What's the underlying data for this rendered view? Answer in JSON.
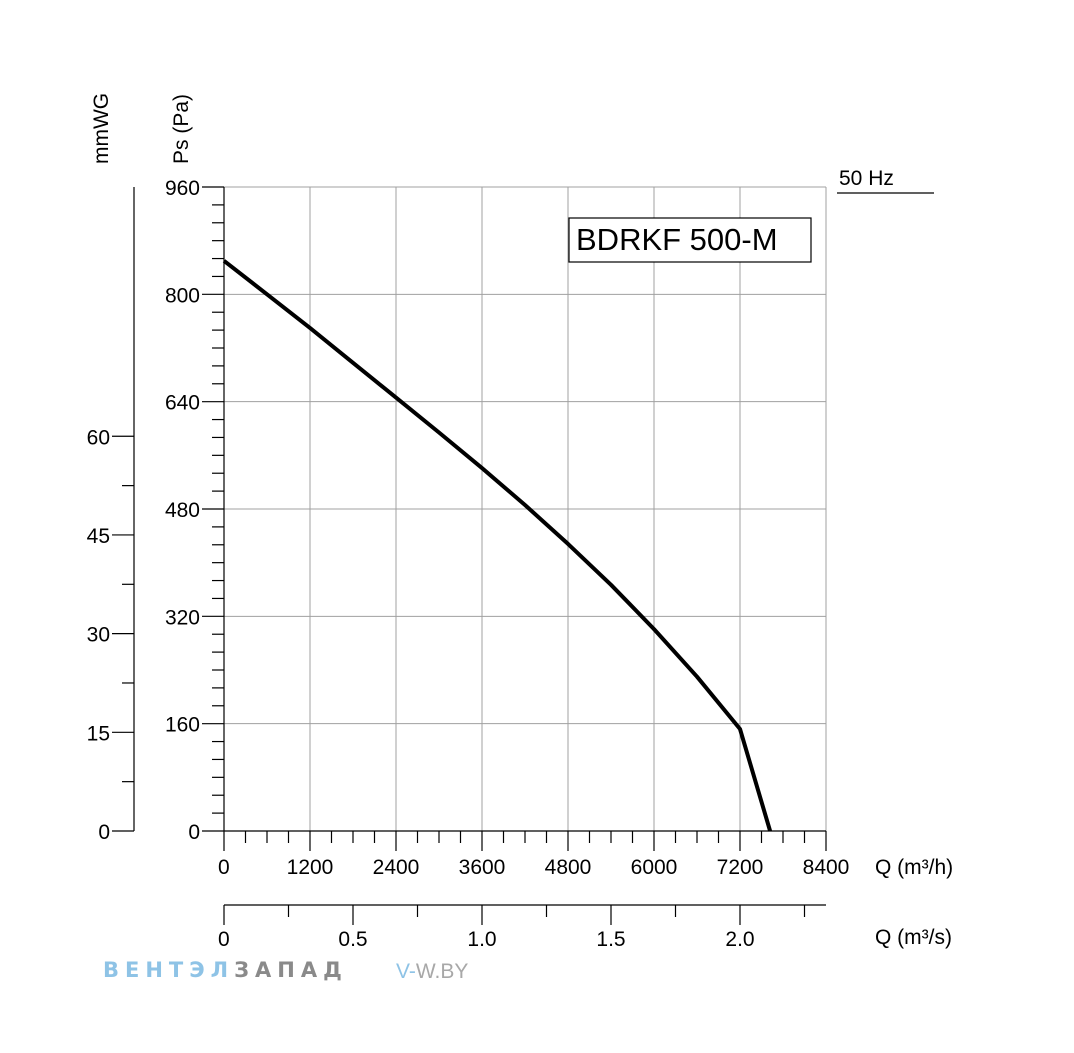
{
  "chart_data": {
    "type": "line",
    "title": "BDRKF 500-M",
    "frequency_label": "50 Hz",
    "xlabel": "Q (m³/h)",
    "xlabel_secondary": "Q (m³/s)",
    "ylabel": "Ps (Pa)",
    "ylabel_secondary": "mmWG",
    "xlim": [
      0,
      8400
    ],
    "ylim": [
      0,
      960
    ],
    "x_ticks": [
      "0",
      "1200",
      "2400",
      "3600",
      "4800",
      "6000",
      "7200",
      "8400"
    ],
    "x_tick_values": [
      0,
      1200,
      2400,
      3600,
      4800,
      6000,
      7200,
      8400
    ],
    "x2_ticks": [
      "0",
      "0.5",
      "1.0",
      "1.5",
      "2.0"
    ],
    "x2_tick_values": [
      0,
      0.5,
      1.0,
      1.5,
      2.0
    ],
    "y_ticks": [
      "0",
      "160",
      "320",
      "480",
      "640",
      "800",
      "960"
    ],
    "y_tick_values": [
      0,
      160,
      320,
      480,
      640,
      800,
      960
    ],
    "y2_ticks": [
      "0",
      "15",
      "30",
      "45",
      "60"
    ],
    "y2_tick_values": [
      0,
      15,
      30,
      45,
      60
    ],
    "grid": true,
    "series": [
      {
        "name": "BDRKF 500-M",
        "x": [
          0,
          600,
          1200,
          1800,
          2400,
          3000,
          3600,
          4200,
          4800,
          5400,
          6000,
          6600,
          7200,
          7620
        ],
        "y": [
          850,
          800,
          750,
          698,
          646,
          594,
          541,
          486,
          428,
          367,
          301,
          230,
          152,
          0
        ]
      }
    ]
  },
  "watermark": {
    "brand_part1": "ВЕНТЭЛ",
    "brand_part2": "ЗАПАД",
    "site_dash": "V-",
    "site_rest": "W.BY"
  }
}
